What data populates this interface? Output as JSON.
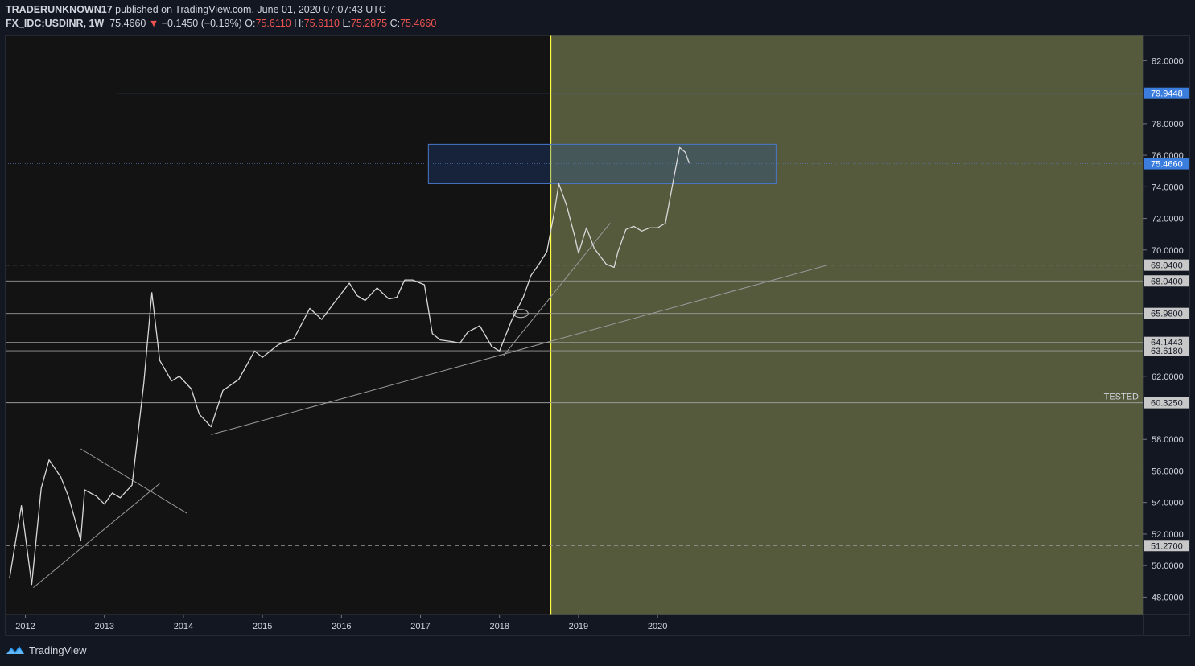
{
  "header": {
    "publisher": "TRADERUNKNOWN17",
    "published_text": "published on TradingView.com, June 01, 2020 07:07:43 UTC",
    "symbol": "FX_IDC:USDINR, 1W",
    "last": "75.4660",
    "change": "−0.1450 (−0.19%)",
    "o_label": "O:",
    "o_value": "75.6110",
    "h_label": "H:",
    "h_value": "75.6110",
    "l_label": "L:",
    "l_value": "75.2875",
    "c_label": "C:",
    "c_value": "75.4660"
  },
  "footer": {
    "brand": "TradingView"
  },
  "colors": {
    "background": "#131722",
    "plot_bg": "#131313",
    "highlight_zone": "#555a3d",
    "vertical_line": "#ffff44",
    "level_line": "#9a9a9a",
    "blue_line": "#4a78c8",
    "candles": "#d8d8d8",
    "blue_tag": "#3b7ddd",
    "gray_tag": "#c8c8c8"
  },
  "chart_data": {
    "type": "line",
    "timeframe": "1W",
    "ylim": [
      46.9,
      83.6
    ],
    "xlim": [
      2011.75,
      2026.15
    ],
    "x_ticks": [
      "2012",
      "2013",
      "2014",
      "2015",
      "2016",
      "2017",
      "2018",
      "2019",
      "2020"
    ],
    "y_ticks": [
      "82.0000",
      "78.0000",
      "76.0000",
      "74.0000",
      "72.0000",
      "70.0000",
      "62.0000",
      "58.0000",
      "56.0000",
      "54.0000",
      "52.0000",
      "50.0000",
      "48.0000"
    ],
    "price_levels": [
      {
        "value": 79.9448,
        "label": "79.9448",
        "style": "blue"
      },
      {
        "value": 75.466,
        "label": "75.4660",
        "style": "current"
      },
      {
        "value": 69.04,
        "label": "69.0400",
        "style": "dashed"
      },
      {
        "value": 68.04,
        "label": "68.0400",
        "style": "solid"
      },
      {
        "value": 65.98,
        "label": "65.9800",
        "style": "solid"
      },
      {
        "value": 64.1443,
        "label": "64.1443",
        "style": "solid"
      },
      {
        "value": 63.618,
        "label": "63.6180",
        "style": "solid"
      },
      {
        "value": 60.325,
        "label": "60.3250",
        "style": "solid"
      },
      {
        "value": 51.27,
        "label": "51.2700",
        "style": "dashed"
      }
    ],
    "annotations": [
      {
        "text": "TESTED",
        "y": 60.325
      }
    ],
    "highlight_start_x": 2018.65,
    "supply_zone": {
      "x": [
        2017.1,
        2021.5
      ],
      "y": [
        74.2,
        76.7
      ]
    },
    "trendlines": [
      {
        "x": [
          2012.1,
          2013.7
        ],
        "y": [
          48.6,
          55.2
        ]
      },
      {
        "x": [
          2012.7,
          2014.05
        ],
        "y": [
          57.4,
          53.3
        ]
      },
      {
        "x": [
          2014.35,
          2022.15
        ],
        "y": [
          58.3,
          69.04
        ]
      },
      {
        "x": [
          2018.05,
          2019.4
        ],
        "y": [
          63.3,
          71.7
        ]
      }
    ],
    "series": [
      {
        "x": [
          2011.8,
          2011.95,
          2012.08,
          2012.2,
          2012.3,
          2012.45,
          2012.55,
          2012.7,
          2012.75,
          2012.9,
          2013.0,
          2013.1,
          2013.2,
          2013.35,
          2013.5,
          2013.6,
          2013.7,
          2013.85,
          2013.95,
          2014.1,
          2014.2,
          2014.35,
          2014.5,
          2014.7,
          2014.9,
          2015.0,
          2015.2,
          2015.4,
          2015.6,
          2015.75,
          2015.9,
          2016.1,
          2016.2,
          2016.3,
          2016.45,
          2016.6,
          2016.7,
          2016.8,
          2016.9,
          2017.05,
          2017.15,
          2017.25,
          2017.4,
          2017.5,
          2017.6,
          2017.75,
          2017.9,
          2018.0,
          2018.15,
          2018.3,
          2018.4,
          2018.5,
          2018.6,
          2018.7,
          2018.75,
          2018.85,
          2018.95,
          2019.0,
          2019.1,
          2019.2,
          2019.35,
          2019.45,
          2019.5,
          2019.6,
          2019.7,
          2019.8,
          2019.9,
          2020.0,
          2020.1,
          2020.2,
          2020.28,
          2020.35,
          2020.4
        ],
        "values": [
          49.2,
          53.8,
          48.8,
          54.9,
          56.7,
          55.6,
          54.3,
          51.6,
          54.8,
          54.4,
          53.9,
          54.6,
          54.3,
          55.1,
          61.6,
          67.3,
          63.0,
          61.7,
          62.0,
          61.2,
          59.6,
          58.8,
          61.1,
          61.8,
          63.6,
          63.2,
          64.0,
          64.4,
          66.3,
          65.6,
          66.6,
          67.9,
          67.1,
          66.8,
          67.6,
          66.9,
          67.0,
          68.1,
          68.1,
          67.8,
          64.7,
          64.3,
          64.2,
          64.1,
          64.8,
          65.2,
          63.9,
          63.6,
          65.5,
          67.0,
          68.4,
          69.1,
          69.9,
          72.6,
          74.2,
          72.8,
          70.9,
          69.8,
          71.4,
          70.1,
          69.1,
          68.9,
          69.9,
          71.3,
          71.5,
          71.2,
          71.4,
          71.4,
          71.7,
          74.4,
          76.5,
          76.2,
          75.5
        ]
      }
    ]
  }
}
